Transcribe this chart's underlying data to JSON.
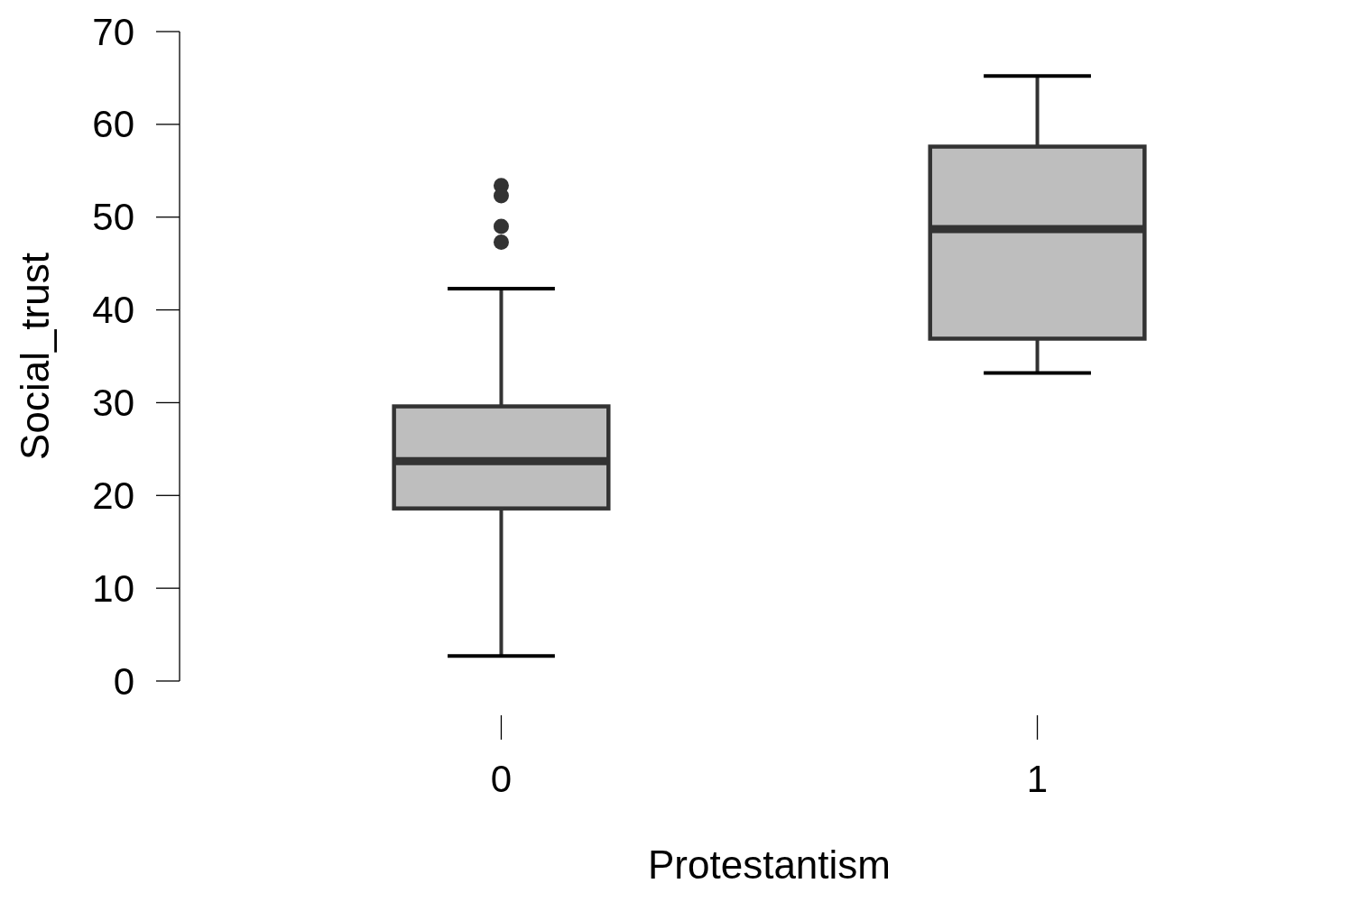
{
  "chart_data": {
    "type": "box",
    "categories": [
      "0",
      "1"
    ],
    "series": [
      {
        "color": "#bebebe",
        "boxes": [
          {
            "low": 2.7,
            "q1": 18.6,
            "median": 23.7,
            "q3": 29.6,
            "high": 42.3,
            "outliers": [
              53.4,
              52.3,
              49.0,
              47.3
            ]
          },
          {
            "low": 33.2,
            "q1": 36.9,
            "median": 48.7,
            "q3": 57.6,
            "high": 65.2
          }
        ]
      }
    ],
    "ylim": [
      0,
      70
    ],
    "yticks": [
      0,
      10,
      20,
      30,
      40,
      50,
      60,
      70
    ],
    "xlabel": "Protestantism",
    "ylabel": "Social_trust"
  }
}
